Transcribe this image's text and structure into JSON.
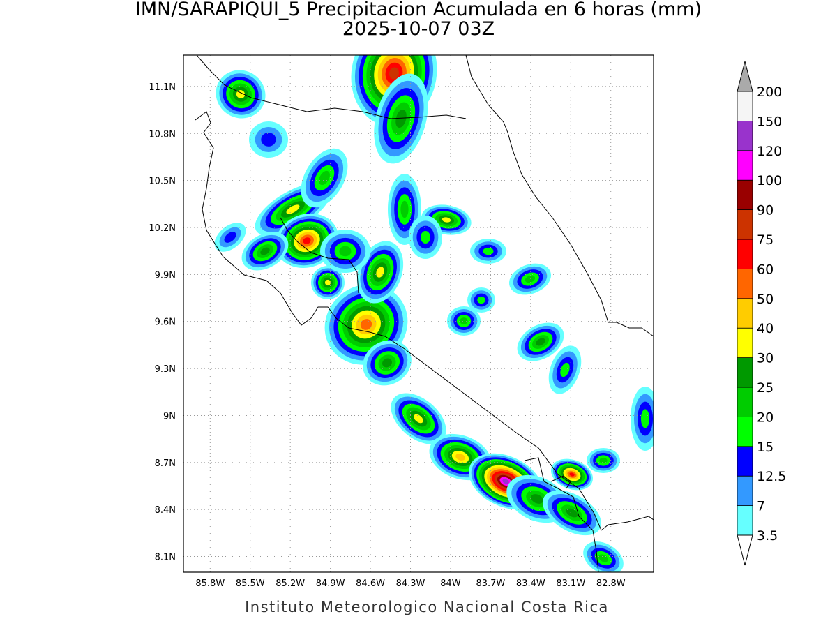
{
  "header": {
    "title": "IMN/SARAPIQUI_5 Precipitacion Acumulada en 6 horas (mm)",
    "subtitle": "2025-10-07 03Z"
  },
  "map": {
    "lonlim": [
      -86.0,
      -82.48
    ],
    "latlim": [
      8.0,
      11.3
    ],
    "grid": true,
    "lonticks": [
      {
        "value": -85.8,
        "label": "85.8W"
      },
      {
        "value": -85.5,
        "label": "85.5W"
      },
      {
        "value": -85.2,
        "label": "85.2W"
      },
      {
        "value": -84.9,
        "label": "84.9W"
      },
      {
        "value": -84.6,
        "label": "84.6W"
      },
      {
        "value": -84.3,
        "label": "84.3W"
      },
      {
        "value": -84.0,
        "label": "84W"
      },
      {
        "value": -83.7,
        "label": "83.7W"
      },
      {
        "value": -83.4,
        "label": "83.4W"
      },
      {
        "value": -83.1,
        "label": "83.1W"
      },
      {
        "value": -82.8,
        "label": "82.8W"
      }
    ],
    "latticks": [
      {
        "value": 8.1,
        "label": "8.1N"
      },
      {
        "value": 8.4,
        "label": "8.4N"
      },
      {
        "value": 8.7,
        "label": "8.7N"
      },
      {
        "value": 9.0,
        "label": "9N"
      },
      {
        "value": 9.3,
        "label": "9.3N"
      },
      {
        "value": 9.6,
        "label": "9.6N"
      },
      {
        "value": 9.9,
        "label": "9.9N"
      },
      {
        "value": 10.2,
        "label": "10.2N"
      },
      {
        "value": 10.5,
        "label": "10.5N"
      },
      {
        "value": 10.8,
        "label": "10.8N"
      },
      {
        "value": 11.1,
        "label": "11.1N"
      }
    ]
  },
  "colorbar": {
    "levels": [
      3.5,
      7,
      12.5,
      15,
      20,
      25,
      30,
      40,
      50,
      60,
      75,
      90,
      100,
      120,
      150,
      200
    ],
    "colors": [
      "#66ffff",
      "#3399ff",
      "#0000ff",
      "#00ff00",
      "#00cc00",
      "#009900",
      "#ffff00",
      "#ffcc00",
      "#ff6600",
      "#ff0000",
      "#cc3300",
      "#990000",
      "#ff00ff",
      "#9933cc",
      "#f5f5f5"
    ],
    "over_color": "#aaaaaa",
    "under_color": "#ffffff"
  },
  "footer": {
    "text": "Instituto Meteorologico Nacional Costa Rica"
  }
}
